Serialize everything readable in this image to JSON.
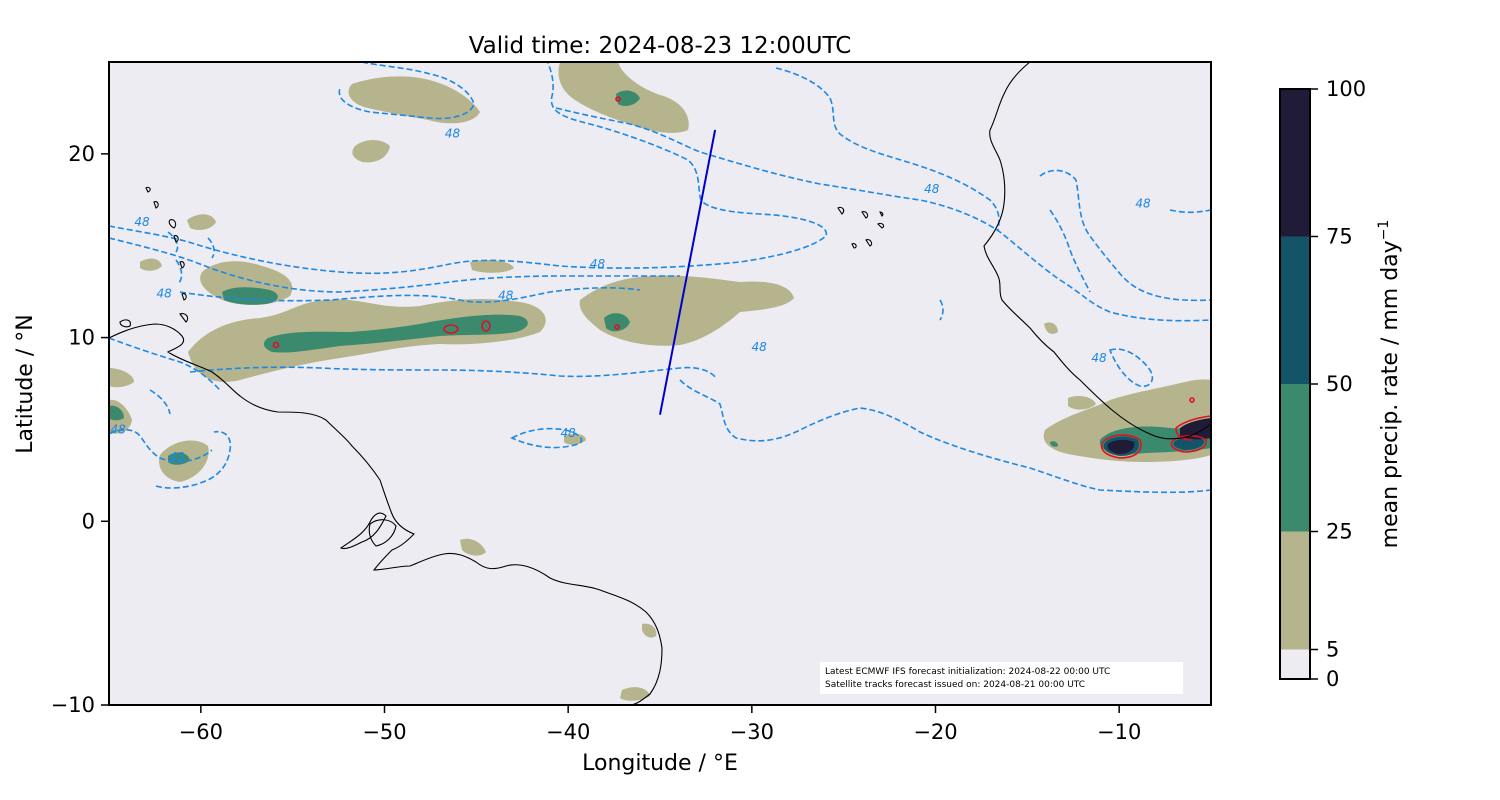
{
  "title": "Valid time: 2024-08-23 12:00UTC",
  "map": {
    "xlabel": "Longitude / °E",
    "ylabel": "Latitude / °N",
    "xlim": [
      -65,
      -5
    ],
    "ylim": [
      -10,
      25
    ],
    "xticks": [
      {
        "value": -60,
        "label": "−60"
      },
      {
        "value": -50,
        "label": "−50"
      },
      {
        "value": -40,
        "label": "−40"
      },
      {
        "value": -30,
        "label": "−30"
      },
      {
        "value": -20,
        "label": "−20"
      },
      {
        "value": -10,
        "label": "−10"
      }
    ],
    "yticks": [
      {
        "value": 20,
        "label": "20"
      },
      {
        "value": 10,
        "label": "10"
      },
      {
        "value": 0,
        "label": "0"
      },
      {
        "value": -10,
        "label": "−10"
      }
    ],
    "background_color": "#ececf2",
    "coastline_color": "#000000",
    "contour_color": "#1e88e5",
    "contour_level_label": "48",
    "track_color": "#0000cc",
    "precip_colors": {
      "5-25": "#b6b48c",
      "25-50": "#3c8a6e",
      "50-75": "#145468",
      "75-100": "#201c38",
      "core_outline": "#e01020"
    }
  },
  "chart_data": {
    "type": "map",
    "title": "Valid time: 2024-08-23 12:00UTC",
    "xlabel": "Longitude / °E",
    "ylabel": "Latitude / °N",
    "xlim": [
      -65,
      -5
    ],
    "ylim": [
      -10,
      25
    ],
    "satellite_track": {
      "start": [
        -35.0,
        5.8
      ],
      "end": [
        -32.0,
        21.3
      ]
    },
    "contour_labels": [
      {
        "lon": -46.3,
        "lat": 21.1,
        "text": "48"
      },
      {
        "lon": -63.2,
        "lat": 16.3,
        "text": "48"
      },
      {
        "lon": -38.4,
        "lat": 14.0,
        "text": "48"
      },
      {
        "lon": -43.4,
        "lat": 12.3,
        "text": "48"
      },
      {
        "lon": -62.0,
        "lat": 12.4,
        "text": "48"
      },
      {
        "lon": -29.6,
        "lat": 9.5,
        "text": "48"
      },
      {
        "lon": -64.5,
        "lat": 5.0,
        "text": "48"
      },
      {
        "lon": -61.3,
        "lat": 3.5,
        "text": "48"
      },
      {
        "lon": -40.0,
        "lat": 4.8,
        "text": "48"
      },
      {
        "lon": -20.2,
        "lat": 18.1,
        "text": "48"
      },
      {
        "lon": -8.7,
        "lat": 17.3,
        "text": "48"
      },
      {
        "lon": -11.1,
        "lat": 8.9,
        "text": "48"
      }
    ],
    "colorbar": {
      "label": "mean precip. rate / mm day",
      "label_superscript": "−1",
      "bounds": [
        0,
        5,
        25,
        50,
        75,
        100
      ],
      "ticks": [
        "0",
        "5",
        "25",
        "50",
        "75",
        "100"
      ],
      "colors": [
        "#ececf2",
        "#b6b48c",
        "#3c8a6e",
        "#145468",
        "#201c38"
      ]
    }
  },
  "annotation": {
    "line1": "Latest ECMWF IFS forecast initialization: 2024-08-22 00:00 UTC",
    "line2": "Satellite tracks forecast issued on: 2024-08-21 00:00 UTC"
  }
}
